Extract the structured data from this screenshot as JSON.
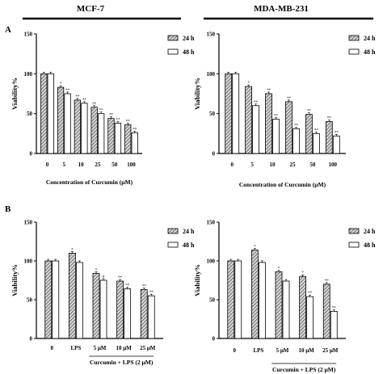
{
  "panel_letters": [
    "A",
    "B"
  ],
  "cell_lines": [
    "MCF-7",
    "MDA-MB-231"
  ],
  "colors": {
    "bar_24h_hatch": "#555555",
    "bar_48h": "#ffffff",
    "axis": "#000000"
  },
  "chart_data": [
    {
      "type": "bar",
      "panel": "A",
      "cell_line": "MCF-7",
      "categories": [
        "0",
        "5",
        "10",
        "25",
        "50",
        "100"
      ],
      "series": [
        {
          "name": "24 h",
          "values": [
            100,
            83,
            67,
            58,
            44,
            36
          ],
          "marks": [
            "",
            "*",
            "**",
            "**",
            "**",
            "**"
          ]
        },
        {
          "name": "48 h",
          "values": [
            100,
            75,
            63,
            50,
            38,
            26
          ],
          "marks": [
            "",
            "**",
            "**",
            "**",
            "**",
            "**"
          ]
        }
      ],
      "xlabel": "Concentration of Curcumin (μM)",
      "ylabel": "Viability%",
      "ylim": [
        0,
        150
      ],
      "yticks": [
        "0",
        "50",
        "100",
        "150"
      ],
      "category_group_label": "",
      "legend_position": "right"
    },
    {
      "type": "bar",
      "panel": "A",
      "cell_line": "MDA-MB-231",
      "categories": [
        "0",
        "5",
        "10",
        "25",
        "50",
        "100"
      ],
      "series": [
        {
          "name": "24 h",
          "values": [
            100,
            84,
            75,
            65,
            49,
            40
          ],
          "marks": [
            "",
            "*",
            "**",
            "**",
            "**",
            "**"
          ]
        },
        {
          "name": "48 h",
          "values": [
            100,
            60,
            43,
            31,
            25,
            22
          ],
          "marks": [
            "",
            "**",
            "**",
            "**",
            "**",
            "**"
          ]
        }
      ],
      "xlabel": "Concentration of Curcumin (μM)",
      "ylabel": "Viability%",
      "ylim": [
        0,
        150
      ],
      "yticks": [
        "0",
        "50",
        "100",
        "150"
      ],
      "category_group_label": "",
      "legend_position": "right"
    },
    {
      "type": "bar",
      "panel": "B",
      "cell_line": "MCF-7",
      "categories": [
        "0",
        "LPS",
        "5 μM",
        "10 μM",
        "25 μM"
      ],
      "series": [
        {
          "name": "24 h",
          "values": [
            100,
            110,
            84,
            74,
            63
          ],
          "marks": [
            "",
            "*",
            "*",
            "**",
            "**"
          ]
        },
        {
          "name": "48 h",
          "values": [
            100,
            98,
            75,
            64,
            55
          ],
          "marks": [
            "",
            "",
            "#",
            "**",
            "**"
          ]
        }
      ],
      "xlabel": "",
      "ylabel": "Viability%",
      "ylim": [
        0,
        150
      ],
      "yticks": [
        "0",
        "50",
        "100",
        "150"
      ],
      "category_group_label": "Curcumin + LPS (2 μM)",
      "legend_position": "right"
    },
    {
      "type": "bar",
      "panel": "B",
      "cell_line": "MDA-MB-231",
      "categories": [
        "0",
        "LPS",
        "5 μM",
        "10 μM",
        "25 μM"
      ],
      "series": [
        {
          "name": "24 h",
          "values": [
            100,
            114,
            86,
            80,
            70
          ],
          "marks": [
            "",
            "*",
            "*",
            "*",
            "**"
          ]
        },
        {
          "name": "48 h",
          "values": [
            100,
            98,
            74,
            54,
            35
          ],
          "marks": [
            "",
            "",
            "",
            "**",
            "**"
          ]
        }
      ],
      "xlabel": "",
      "ylabel": "Viability%",
      "ylim": [
        0,
        150
      ],
      "yticks": [
        "0",
        "50",
        "100",
        "150"
      ],
      "category_group_label": "Curcumin + LPS (2 μM)",
      "legend_position": "right"
    }
  ]
}
